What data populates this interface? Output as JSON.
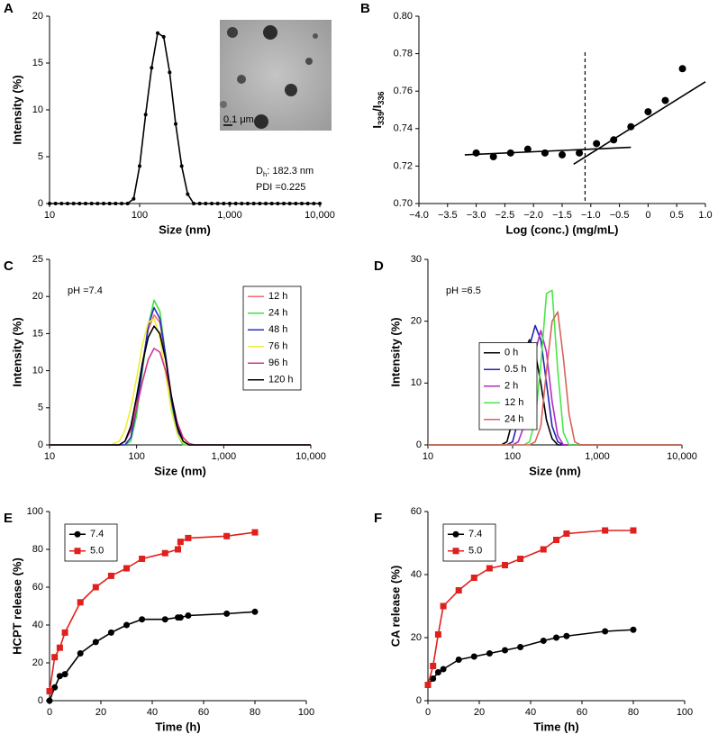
{
  "chart_data": [
    {
      "panel_label": "A",
      "type": "line",
      "x_scale": "log",
      "xlabel": "Size (nm)",
      "ylabel": "Intensity (%)",
      "xlim": [
        10,
        10000
      ],
      "ylim": [
        0,
        20
      ],
      "xticks": [
        10,
        100,
        {
          "value": 1000,
          "label": "1,000"
        },
        {
          "value": 10000,
          "label": "10,000"
        }
      ],
      "yticks": [
        0,
        5,
        10,
        15,
        20
      ],
      "x": [
        10,
        11.66,
        13.59,
        15.85,
        18.48,
        21.54,
        25.12,
        29.29,
        34.15,
        39.81,
        46.42,
        54.12,
        63.1,
        73.56,
        85.77,
        100,
        116.6,
        135.9,
        158.5,
        184.8,
        215.4,
        251.2,
        292.9,
        341.5,
        398.1,
        464.2,
        541.2,
        631,
        735.6,
        857.7,
        1000,
        1166,
        1359,
        1585,
        1848,
        2154,
        2512,
        2929,
        3415,
        3981,
        4642,
        5412,
        6310,
        7356,
        8577,
        10000
      ],
      "values": [
        0,
        0,
        0,
        0,
        0,
        0,
        0,
        0,
        0,
        0,
        0,
        0,
        0,
        0,
        0.5,
        4,
        9.5,
        14.5,
        18.2,
        17.8,
        14,
        8.5,
        4,
        1,
        0,
        0,
        0,
        0,
        0,
        0,
        0,
        0,
        0,
        0,
        0,
        0,
        0,
        0,
        0,
        0,
        0,
        0,
        0,
        0,
        0,
        0
      ],
      "color": "#000000",
      "marker": "dot",
      "dh_label": [
        "D",
        "h",
        ": 182.3 nm"
      ],
      "pdi_label": "PDI =0.225",
      "inset_scale_label": "0.1 μm"
    },
    {
      "panel_label": "B",
      "type": "scatter",
      "xlabel": "Log (conc.) (mg/mL)",
      "ylabel": [
        "I",
        "339",
        "/I",
        "336"
      ],
      "xlim": [
        -4,
        1
      ],
      "ylim": [
        0.7,
        0.8
      ],
      "xticks": [
        {
          "value": -4,
          "label": "−4.0"
        },
        {
          "value": -3.5,
          "label": "−3.5"
        },
        {
          "value": -3,
          "label": "−3.0"
        },
        {
          "value": -2.5,
          "label": "−2.5"
        },
        {
          "value": -2,
          "label": "−2.0"
        },
        {
          "value": -1.5,
          "label": "−1.5"
        },
        {
          "value": -1,
          "label": "−1.0"
        },
        {
          "value": -0.5,
          "label": "−0.5"
        },
        0,
        0.5,
        {
          "value": 1,
          "label": "1.0"
        }
      ],
      "yticks": [
        {
          "value": 0.7,
          "label": "0.70"
        },
        0.72,
        0.74,
        0.76,
        0.78,
        {
          "value": 0.8,
          "label": "0.80"
        }
      ],
      "x": [
        -3.0,
        -2.7,
        -2.4,
        -2.1,
        -1.8,
        -1.5,
        -1.2,
        -0.9,
        -0.6,
        -0.3,
        0,
        0.3,
        0.6
      ],
      "y": [
        0.727,
        0.725,
        0.727,
        0.729,
        0.727,
        0.726,
        0.727,
        0.732,
        0.734,
        0.741,
        0.749,
        0.755,
        0.772
      ],
      "color": "#000000",
      "fit_lines": [
        {
          "x": [
            -3.2,
            -0.3
          ],
          "y": [
            0.726,
            0.73
          ]
        },
        {
          "x": [
            -1.3,
            1.0
          ],
          "y": [
            0.721,
            0.765
          ]
        }
      ],
      "vline_x": -1.1
    },
    {
      "panel_label": "C",
      "type": "line",
      "x_scale": "log",
      "xlabel": "Size (nm)",
      "ylabel": "Intensity (%)",
      "xlim": [
        10,
        10000
      ],
      "ylim": [
        0,
        25
      ],
      "xticks": [
        10,
        100,
        {
          "value": 1000,
          "label": "1,000"
        },
        {
          "value": 10000,
          "label": "10,000"
        }
      ],
      "yticks": [
        0,
        5,
        10,
        15,
        20,
        25
      ],
      "annotation": "pH =7.4",
      "legend_loc": "upper right",
      "x": [
        10,
        50,
        63.1,
        73.56,
        85.77,
        100,
        116.6,
        135.9,
        158.5,
        184.8,
        215.4,
        251.2,
        292.9,
        341.5,
        398.1,
        464.2,
        10000
      ],
      "series": [
        {
          "name": "12 h",
          "color": "#f26d6d",
          "values": [
            0,
            0,
            0,
            0.5,
            2,
            6,
            11,
            15.5,
            17.5,
            16.5,
            12,
            6.5,
            2.5,
            0.5,
            0,
            0,
            0
          ]
        },
        {
          "name": "24 h",
          "color": "#3ee03e",
          "values": [
            0,
            0,
            0,
            0,
            0.5,
            4,
            10,
            16,
            19.5,
            18,
            12,
            5.5,
            1.5,
            0,
            0,
            0,
            0
          ]
        },
        {
          "name": "48 h",
          "color": "#2b2bc8",
          "values": [
            0,
            0,
            0,
            0,
            1,
            5,
            10.5,
            16,
            18.5,
            17,
            12,
            6,
            2,
            0.3,
            0,
            0,
            0
          ]
        },
        {
          "name": "76 h",
          "color": "#eeee3a",
          "values": [
            0,
            0,
            0.5,
            2,
            5,
            9,
            13.5,
            16.5,
            17,
            14.5,
            9.5,
            4.5,
            1.5,
            0.3,
            0,
            0,
            0
          ]
        },
        {
          "name": "96 h",
          "color": "#d6348c",
          "values": [
            0,
            0,
            0,
            0.5,
            2,
            5,
            8.5,
            11.5,
            13,
            12.5,
            10,
            6.5,
            3,
            1,
            0.2,
            0,
            0
          ]
        },
        {
          "name": "120 h",
          "color": "#000000",
          "values": [
            0,
            0,
            0,
            0.5,
            2.5,
            6.5,
            11,
            14.5,
            16,
            15,
            11.5,
            6.5,
            2.5,
            0.5,
            0,
            0,
            0
          ]
        }
      ]
    },
    {
      "panel_label": "D",
      "type": "line",
      "x_scale": "log",
      "xlabel": "Size (nm)",
      "ylabel": "Intensity (%)",
      "xlim": [
        10,
        10000
      ],
      "ylim": [
        0,
        30
      ],
      "xticks": [
        10,
        100,
        {
          "value": 1000,
          "label": "1,000"
        },
        {
          "value": 10000,
          "label": "10,000"
        }
      ],
      "yticks": [
        0,
        10,
        20,
        30
      ],
      "annotation": "pH =6.5",
      "legend_loc": "lower left",
      "x": [
        10,
        63.1,
        73.56,
        85.77,
        100,
        116.6,
        135.9,
        158.5,
        184.8,
        215.4,
        251.2,
        292.9,
        341.5,
        398.1,
        464.2,
        541.2,
        631,
        735.6,
        10000
      ],
      "series": [
        {
          "name": "0 h",
          "color": "#000000",
          "values": [
            0,
            0,
            0,
            0.5,
            4,
            10,
            15,
            17,
            15,
            10,
            4,
            1,
            0,
            0,
            0,
            0,
            0,
            0,
            0
          ]
        },
        {
          "name": "0.5 h",
          "color": "#2323b4",
          "values": [
            0,
            0,
            0,
            0,
            0.5,
            4,
            10,
            16,
            19.3,
            17,
            10,
            3,
            0.5,
            0,
            0,
            0,
            0,
            0,
            0
          ]
        },
        {
          "name": "2 h",
          "color": "#b42bc8",
          "values": [
            0,
            0,
            0,
            0,
            0,
            0.5,
            3,
            9,
            15,
            18.5,
            15,
            7,
            1.5,
            0,
            0,
            0,
            0,
            0,
            0
          ]
        },
        {
          "name": "12 h",
          "color": "#48e848",
          "values": [
            0,
            0,
            0,
            0,
            0,
            0,
            0,
            0.5,
            4,
            13,
            24.5,
            25,
            12,
            2,
            0,
            0,
            0,
            0,
            0
          ]
        },
        {
          "name": "24 h",
          "color": "#d9645a",
          "values": [
            0,
            0,
            0,
            0,
            0,
            0,
            0,
            0,
            0.5,
            3,
            12,
            20,
            21.5,
            14,
            5,
            0.5,
            0,
            0,
            0
          ]
        }
      ]
    },
    {
      "panel_label": "E",
      "type": "line",
      "xlabel": "Time (h)",
      "ylabel": "HCPT release (%)",
      "xlim": [
        0,
        100
      ],
      "ylim": [
        0,
        100
      ],
      "xticks": [
        0,
        20,
        40,
        60,
        80,
        100
      ],
      "yticks": [
        0,
        20,
        40,
        60,
        80,
        100
      ],
      "legend_loc": "upper left",
      "x": [
        0,
        2,
        4,
        6,
        12,
        18,
        24,
        30,
        36,
        45,
        50,
        51,
        54,
        69,
        80
      ],
      "series": [
        {
          "name": "7.4",
          "color": "#000000",
          "marker": "circle",
          "values": [
            0,
            7,
            13,
            14,
            25,
            31,
            36,
            40,
            43,
            43,
            44,
            44,
            45,
            46,
            47
          ]
        },
        {
          "name": "5.0",
          "color": "#e0201c",
          "marker": "square",
          "values": [
            5,
            23,
            28,
            36,
            52,
            60,
            66,
            70,
            75,
            78,
            80,
            84,
            86,
            87,
            89
          ]
        }
      ]
    },
    {
      "panel_label": "F",
      "type": "line",
      "xlabel": "Time (h)",
      "ylabel": "CA release (%)",
      "xlim": [
        0,
        100
      ],
      "ylim": [
        0,
        60
      ],
      "xticks": [
        0,
        20,
        40,
        60,
        80,
        100
      ],
      "yticks": [
        0,
        20,
        40,
        60
      ],
      "legend_loc": "upper left",
      "x": [
        0,
        2,
        4,
        6,
        12,
        18,
        24,
        30,
        36,
        45,
        50,
        54,
        69,
        80
      ],
      "series": [
        {
          "name": "7.4",
          "color": "#000000",
          "marker": "circle",
          "values": [
            5,
            7,
            9,
            10,
            13,
            14,
            15,
            16,
            17,
            19,
            20,
            20.5,
            22,
            22.5
          ]
        },
        {
          "name": "5.0",
          "color": "#e0201c",
          "marker": "square",
          "values": [
            5,
            11,
            21,
            30,
            35,
            39,
            42,
            43,
            45,
            48,
            51,
            53,
            54,
            54
          ]
        }
      ]
    }
  ]
}
